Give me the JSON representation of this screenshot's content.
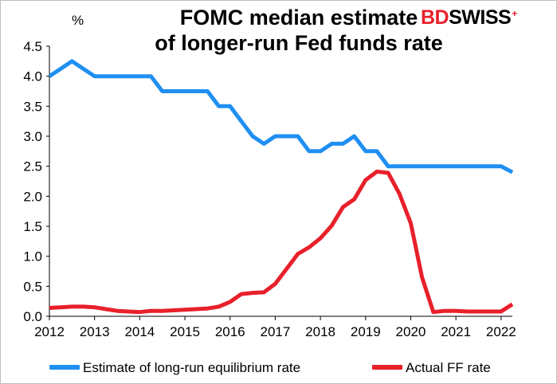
{
  "title_line1": "FOMC median estimate",
  "title_line2": "of longer-run Fed funds rate",
  "logo": "BDSWISS",
  "unit": "%",
  "chart_data": {
    "type": "line",
    "title": "FOMC median estimate of longer-run Fed funds rate",
    "ylabel": "%",
    "xlim": [
      2012,
      2022.25
    ],
    "ylim": [
      0,
      4.5
    ],
    "yticks": [
      "0.0",
      "0.5",
      "1.0",
      "1.5",
      "2.0",
      "2.5",
      "3.0",
      "3.5",
      "4.0",
      "4.5"
    ],
    "xticks": [
      "2012",
      "2013",
      "2014",
      "2015",
      "2016",
      "2017",
      "2018",
      "2019",
      "2020",
      "2021",
      "2022"
    ],
    "grid": false,
    "legend_position": "bottom",
    "series": [
      {
        "name": "Estimate of long-run equilibrium rate",
        "color": "#1f8ff2",
        "x": [
          2012.0,
          2012.25,
          2012.5,
          2012.75,
          2013.0,
          2013.25,
          2013.5,
          2013.75,
          2014.0,
          2014.25,
          2014.5,
          2014.75,
          2015.0,
          2015.25,
          2015.5,
          2015.75,
          2016.0,
          2016.25,
          2016.5,
          2016.75,
          2017.0,
          2017.25,
          2017.5,
          2017.75,
          2018.0,
          2018.25,
          2018.5,
          2018.75,
          2019.0,
          2019.25,
          2019.5,
          2019.75,
          2020.0,
          2020.25,
          2020.5,
          2020.75,
          2021.0,
          2021.25,
          2021.5,
          2021.75,
          2022.0,
          2022.25
        ],
        "values": [
          4.0,
          4.125,
          4.25,
          4.125,
          4.0,
          4.0,
          4.0,
          4.0,
          4.0,
          4.0,
          3.75,
          3.75,
          3.75,
          3.75,
          3.75,
          3.5,
          3.5,
          3.25,
          3.0,
          2.875,
          3.0,
          3.0,
          3.0,
          2.75,
          2.75,
          2.875,
          2.875,
          3.0,
          2.75,
          2.75,
          2.5,
          2.5,
          2.5,
          2.5,
          2.5,
          2.5,
          2.5,
          2.5,
          2.5,
          2.5,
          2.5,
          2.4
        ]
      },
      {
        "name": "Actual FF rate",
        "color": "#e8202a",
        "x": [
          2012.0,
          2012.25,
          2012.5,
          2012.75,
          2013.0,
          2013.25,
          2013.5,
          2013.75,
          2014.0,
          2014.25,
          2014.5,
          2014.75,
          2015.0,
          2015.25,
          2015.5,
          2015.75,
          2016.0,
          2016.25,
          2016.5,
          2016.75,
          2017.0,
          2017.25,
          2017.5,
          2017.75,
          2018.0,
          2018.25,
          2018.5,
          2018.75,
          2019.0,
          2019.25,
          2019.5,
          2019.75,
          2020.0,
          2020.25,
          2020.5,
          2020.75,
          2021.0,
          2021.25,
          2021.5,
          2021.75,
          2022.0,
          2022.25
        ],
        "values": [
          0.14,
          0.15,
          0.16,
          0.16,
          0.15,
          0.12,
          0.09,
          0.08,
          0.07,
          0.09,
          0.09,
          0.1,
          0.11,
          0.12,
          0.13,
          0.16,
          0.24,
          0.37,
          0.39,
          0.4,
          0.54,
          0.79,
          1.04,
          1.15,
          1.3,
          1.51,
          1.82,
          1.95,
          2.27,
          2.41,
          2.39,
          2.04,
          1.55,
          0.65,
          0.07,
          0.09,
          0.09,
          0.08,
          0.08,
          0.08,
          0.08,
          0.2
        ]
      }
    ]
  }
}
